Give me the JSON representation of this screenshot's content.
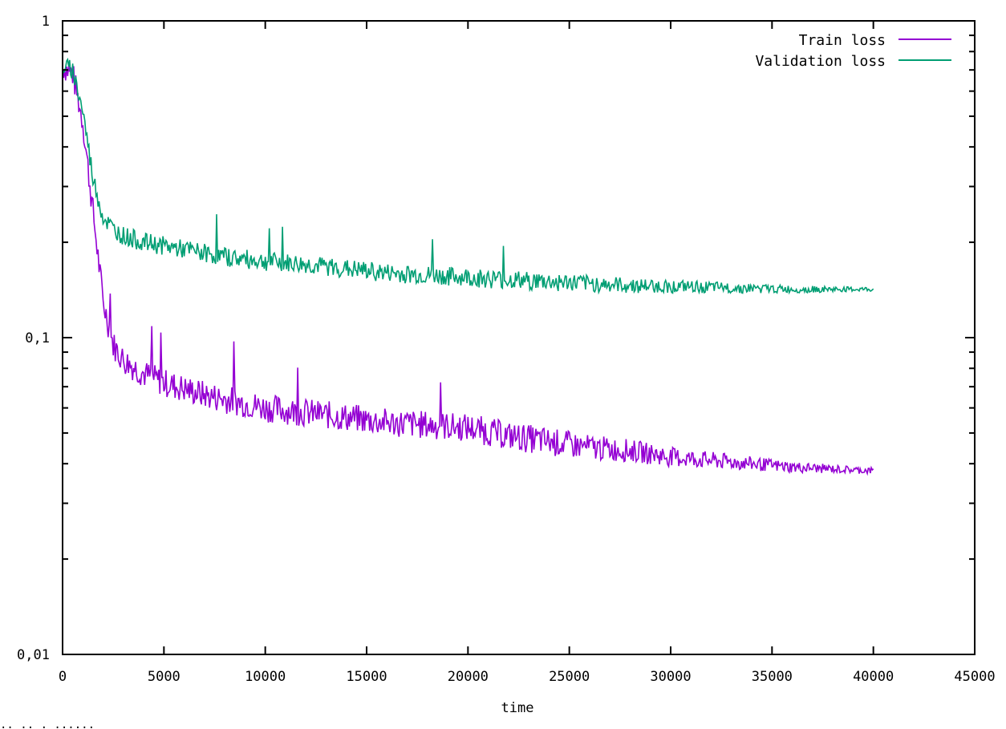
{
  "chart_data": {
    "type": "line",
    "title": "",
    "xlabel": "time",
    "ylabel": "",
    "xlim": [
      0,
      45000
    ],
    "ylim": [
      0.01,
      1
    ],
    "yscale": "log",
    "grid": false,
    "legend_position": "top-right",
    "x_ticks": [
      0,
      5000,
      10000,
      15000,
      20000,
      25000,
      30000,
      35000,
      40000,
      45000
    ],
    "x_tick_labels": [
      "0",
      "5000",
      "10000",
      "15000",
      "20000",
      "25000",
      "30000",
      "35000",
      "40000",
      "45000"
    ],
    "y_ticks": [
      0.01,
      0.1,
      1
    ],
    "y_tick_labels": [
      "0.01",
      "0.1",
      "1"
    ],
    "x": [
      0,
      500,
      1000,
      1500,
      2000,
      2500,
      3000,
      4000,
      5000,
      6000,
      7000,
      8000,
      9000,
      10000,
      12000,
      14000,
      16000,
      18000,
      20000,
      22000,
      24000,
      26000,
      28000,
      30000,
      32000,
      34000,
      36000,
      38000,
      40000
    ],
    "series": [
      {
        "name": "Train loss",
        "color": "#9400D3",
        "values": [
          0.72,
          0.68,
          0.48,
          0.25,
          0.13,
          0.095,
          0.085,
          0.077,
          0.072,
          0.069,
          0.066,
          0.064,
          0.062,
          0.06,
          0.058,
          0.056,
          0.054,
          0.053,
          0.052,
          0.049,
          0.047,
          0.045,
          0.044,
          0.042,
          0.041,
          0.04,
          0.039,
          0.0385,
          0.038
        ]
      },
      {
        "name": "Validation loss",
        "color": "#009E73",
        "values": [
          0.72,
          0.7,
          0.52,
          0.32,
          0.24,
          0.22,
          0.21,
          0.2,
          0.195,
          0.19,
          0.185,
          0.18,
          0.177,
          0.174,
          0.17,
          0.165,
          0.16,
          0.157,
          0.155,
          0.152,
          0.15,
          0.148,
          0.146,
          0.145,
          0.144,
          0.143,
          0.142,
          0.142,
          0.142
        ]
      }
    ]
  },
  "legend": {
    "items": [
      {
        "label": "Train loss",
        "color": "#9400D3"
      },
      {
        "label": "Validation loss",
        "color": "#009E73"
      }
    ]
  },
  "axes": {
    "xlabel": "time"
  },
  "status_bar": {
    "text": "..  ..    .  ......"
  }
}
